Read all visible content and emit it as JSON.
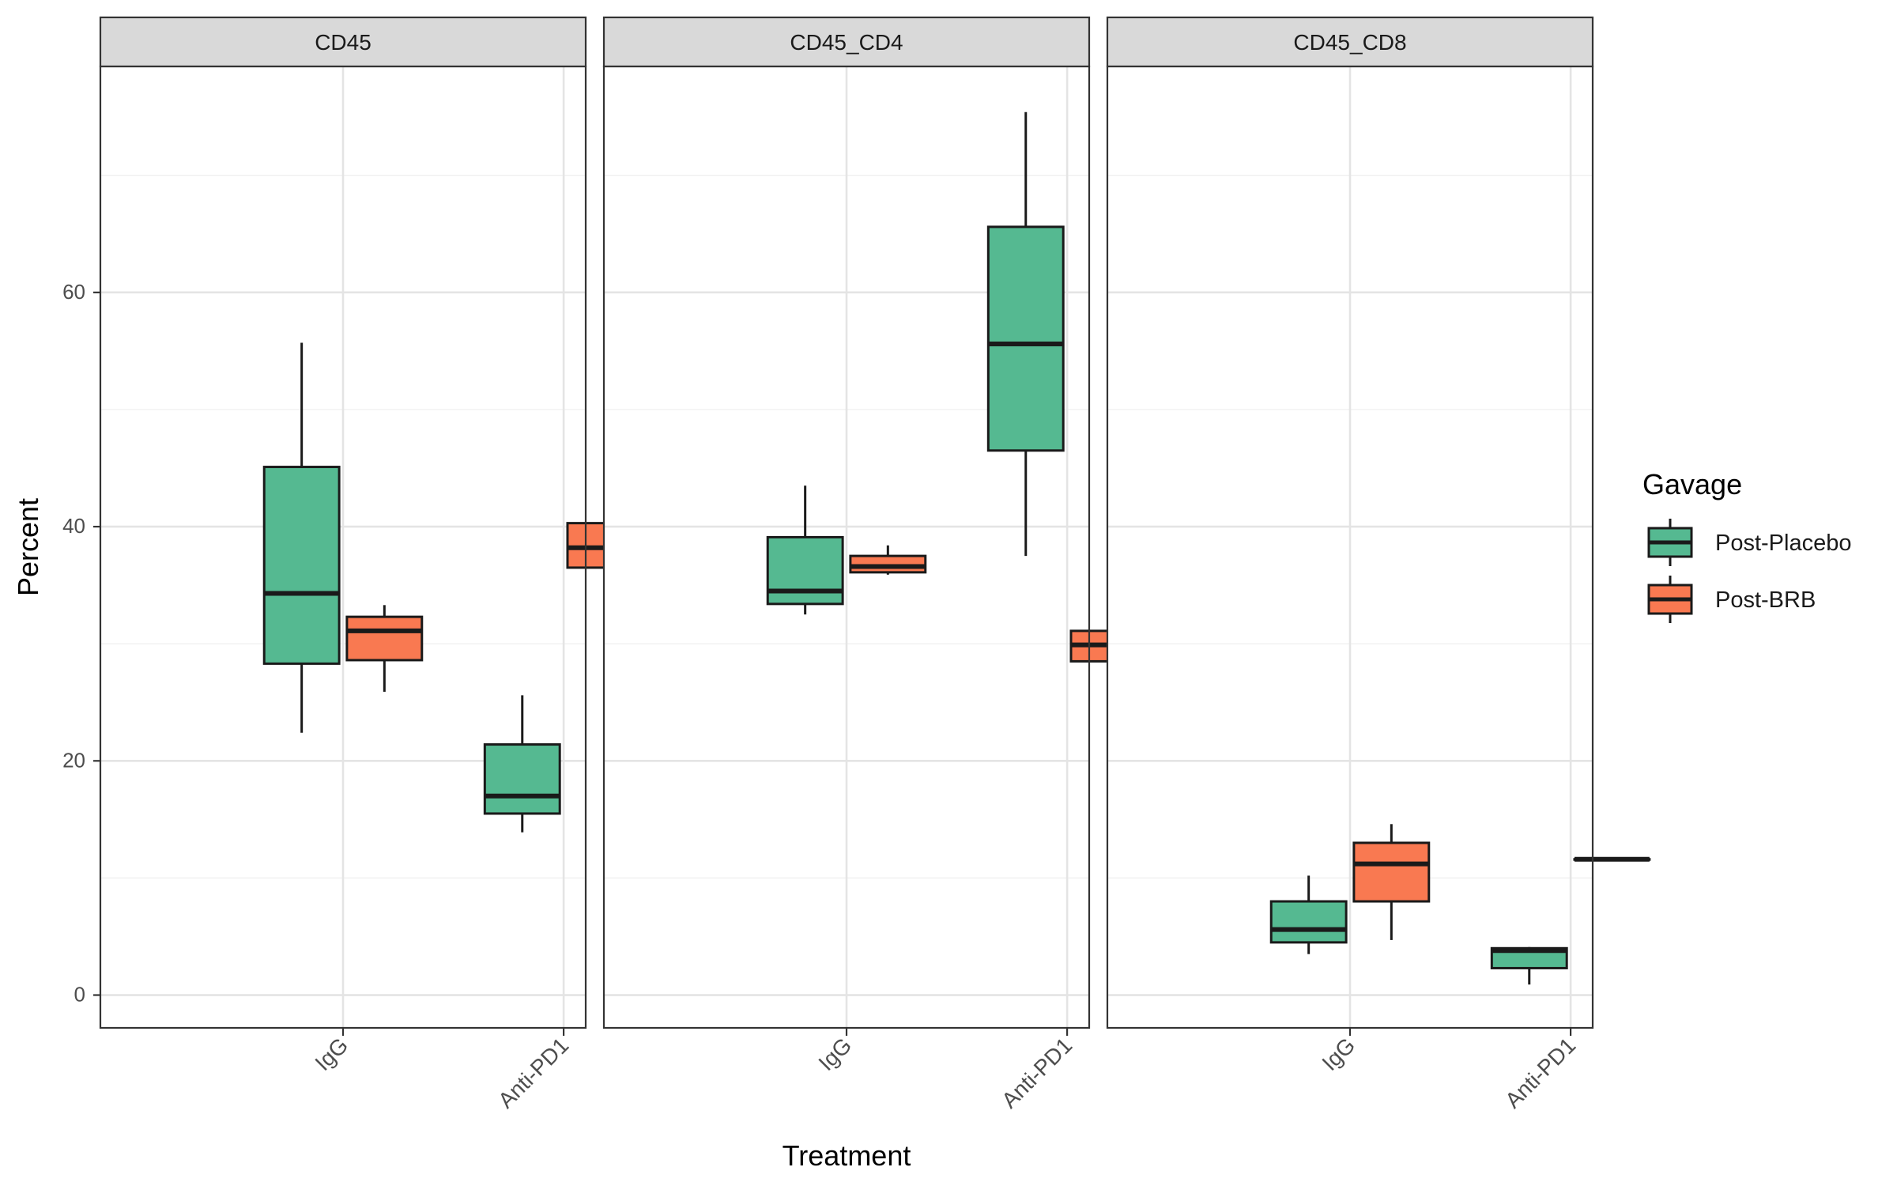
{
  "chart_data": {
    "type": "boxplot",
    "facets": [
      "CD45",
      "CD45_CD4",
      "CD45_CD8"
    ],
    "categories": [
      "IgG",
      "Anti-PD1"
    ],
    "xlabel": "Treatment",
    "ylabel": "Percent",
    "ylim": [
      -2.8,
      79.3
    ],
    "yticks": [
      0,
      20,
      40,
      60
    ],
    "grid": true,
    "legend": {
      "title": "Gavage",
      "position": "right",
      "entries": [
        {
          "name": "Post-Placebo",
          "color": "#55B991"
        },
        {
          "name": "Post-BRB",
          "color": "#F97951"
        }
      ]
    },
    "series": [
      {
        "name": "Post-Placebo",
        "color": "#55B991",
        "boxes": [
          {
            "facet": "CD45",
            "category": "IgG",
            "min": 22.4,
            "q1": 28.3,
            "median": 34.3,
            "q3": 45.1,
            "max": 55.7
          },
          {
            "facet": "CD45",
            "category": "Anti-PD1",
            "min": 13.9,
            "q1": 15.5,
            "median": 17.0,
            "q3": 21.4,
            "max": 25.6
          },
          {
            "facet": "CD45_CD4",
            "category": "IgG",
            "min": 32.5,
            "q1": 33.4,
            "median": 34.5,
            "q3": 39.1,
            "max": 43.5
          },
          {
            "facet": "CD45_CD4",
            "category": "Anti-PD1",
            "min": 37.5,
            "q1": 46.5,
            "median": 55.6,
            "q3": 65.6,
            "max": 75.4
          },
          {
            "facet": "CD45_CD8",
            "category": "IgG",
            "min": 3.5,
            "q1": 4.5,
            "median": 5.6,
            "q3": 8.0,
            "max": 10.2
          },
          {
            "facet": "CD45_CD8",
            "category": "Anti-PD1",
            "min": 0.9,
            "q1": 2.3,
            "median": 3.8,
            "q3": 4.0,
            "max": 4.1
          }
        ]
      },
      {
        "name": "Post-BRB",
        "color": "#F97951",
        "boxes": [
          {
            "facet": "CD45",
            "category": "IgG",
            "min": 25.9,
            "q1": 28.6,
            "median": 31.1,
            "q3": 32.3,
            "max": 33.3
          },
          {
            "facet": "CD45",
            "category": "Anti-PD1",
            "min": 34.5,
            "q1": 36.5,
            "median": 38.2,
            "q3": 40.3,
            "max": 42.2
          },
          {
            "facet": "CD45_CD4",
            "category": "IgG",
            "min": 35.9,
            "q1": 36.1,
            "median": 36.6,
            "q3": 37.5,
            "max": 38.4
          },
          {
            "facet": "CD45_CD4",
            "category": "Anti-PD1",
            "min": 27.2,
            "q1": 28.5,
            "median": 29.9,
            "q3": 31.1,
            "max": 32.3
          },
          {
            "facet": "CD45_CD8",
            "category": "IgG",
            "min": 4.7,
            "q1": 8.0,
            "median": 11.2,
            "q3": 13.0,
            "max": 14.6
          },
          {
            "facet": "CD45_CD8",
            "category": "Anti-PD1",
            "min": 11.6,
            "q1": 11.6,
            "median": 11.6,
            "q3": 11.6,
            "max": 11.6
          }
        ]
      }
    ]
  }
}
